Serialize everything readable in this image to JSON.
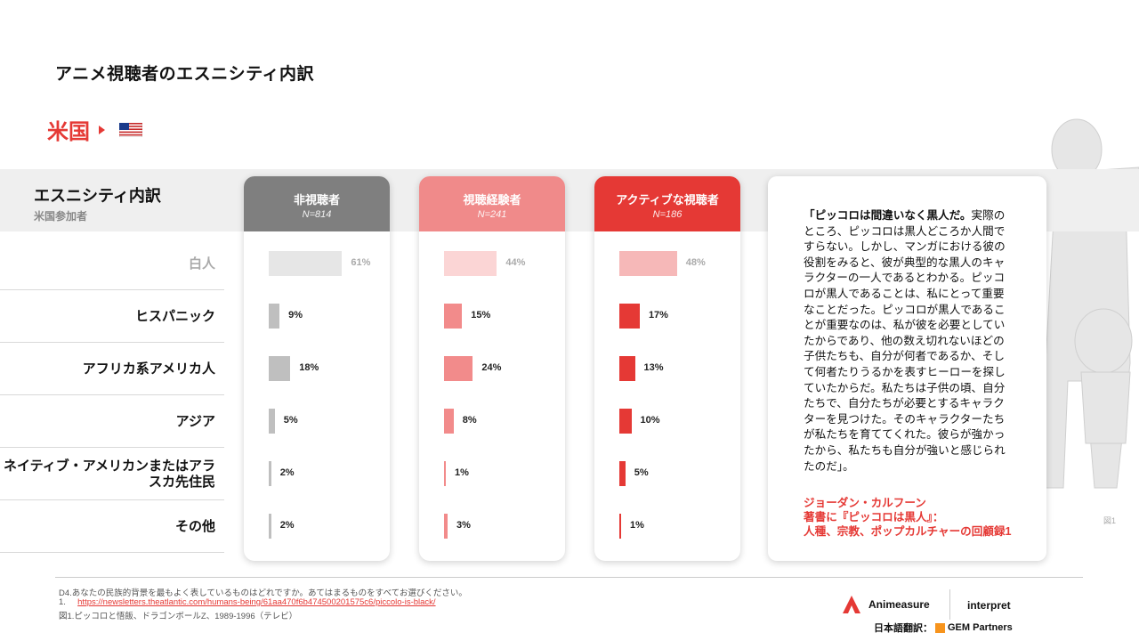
{
  "title": "アニメ視聴者のエスニシティ内訳",
  "country": "米国",
  "header": {
    "label": "エスニシティ内訳",
    "sublabel": "米国参加者"
  },
  "categories": [
    "白人",
    "ヒスパニック",
    "アフリカ系アメリカ人",
    "アジア",
    "ネイティブ・アメリカンまたはアラスカ先住民",
    "その他"
  ],
  "chart_data": {
    "type": "bar",
    "categories": [
      "白人",
      "ヒスパニック",
      "アフリカ系アメリカ人",
      "アジア",
      "ネイティブ・アメリカンまたはアラスカ先住民",
      "その他"
    ],
    "series": [
      {
        "name": "非視聴者",
        "n": "N=814",
        "values": [
          61,
          9,
          18,
          5,
          2,
          2
        ],
        "labels": [
          "61%",
          "9%",
          "18%",
          "5%",
          "2%",
          "2%"
        ],
        "color": "#7f7f7f",
        "bar_color": "#bfbfbf",
        "faded_color": "#e6e6e6"
      },
      {
        "name": "視聴経験者",
        "n": "N=241",
        "values": [
          44,
          15,
          24,
          8,
          1,
          3
        ],
        "labels": [
          "44%",
          "15%",
          "24%",
          "8%",
          "1%",
          "3%"
        ],
        "color": "#f08a8a",
        "bar_color": "#f28b8b",
        "faded_color": "#fbd5d5"
      },
      {
        "name": "アクティブな視聴者",
        "n": "N=186",
        "values": [
          48,
          17,
          13,
          10,
          5,
          1
        ],
        "labels": [
          "48%",
          "17%",
          "13%",
          "10%",
          "5%",
          "1%"
        ],
        "color": "#e53935",
        "bar_color": "#e53935",
        "faded_color": "#f6b8b8"
      }
    ]
  },
  "quote": {
    "lead": "「ピッコロは間違いなく黒人だ。",
    "body": "実際のところ、ピッコロは黒人どころか人間ですらない。しかし、マンガにおける彼の役割をみると、彼が典型的な黒人のキャラクターの一人であるとわかる。ピッコロが黒人であることは、私にとって重要なことだった。ピッコロが黒人であることが重要なのは、私が彼を必要としていたからであり、他の数え切れないほどの子供たちも、自分が何者であるか、そして何者たりうるかを表すヒーローを探していたからだ。私たちは子供の頃、自分たちで、自分たちが必要とするキャラクターを見つけた。そのキャラクターたちが私たちを育ててくれた。彼らが強かったから、私たちも自分が強いと感じられたのだ」。",
    "author1": "ジョーダン・カルフーン",
    "author2": "著書に『ピッコロは黒人』：",
    "author3": "人種、宗教、ポップカルチャーの回顧録1"
  },
  "fig_label": "図1",
  "footnotes": {
    "q": "D4.あなたの民族的背景を最もよく表しているものはどれですか。あてはまるものをすべてお選びください。",
    "n1_prefix": "1.",
    "n1_link": "https://newsletters.theatlantic.com/humans-being/61aa470f6b474500201575c6/piccolo-is-black/",
    "fig": "図1.ピッコロと悟飯、ドラゴンボールZ、1989-1996（テレビ）"
  },
  "logos": {
    "a": "Animeasure",
    "b": "interpret",
    "gem_prefix": "日本語翻訳：",
    "gem": "GEM Partners"
  }
}
